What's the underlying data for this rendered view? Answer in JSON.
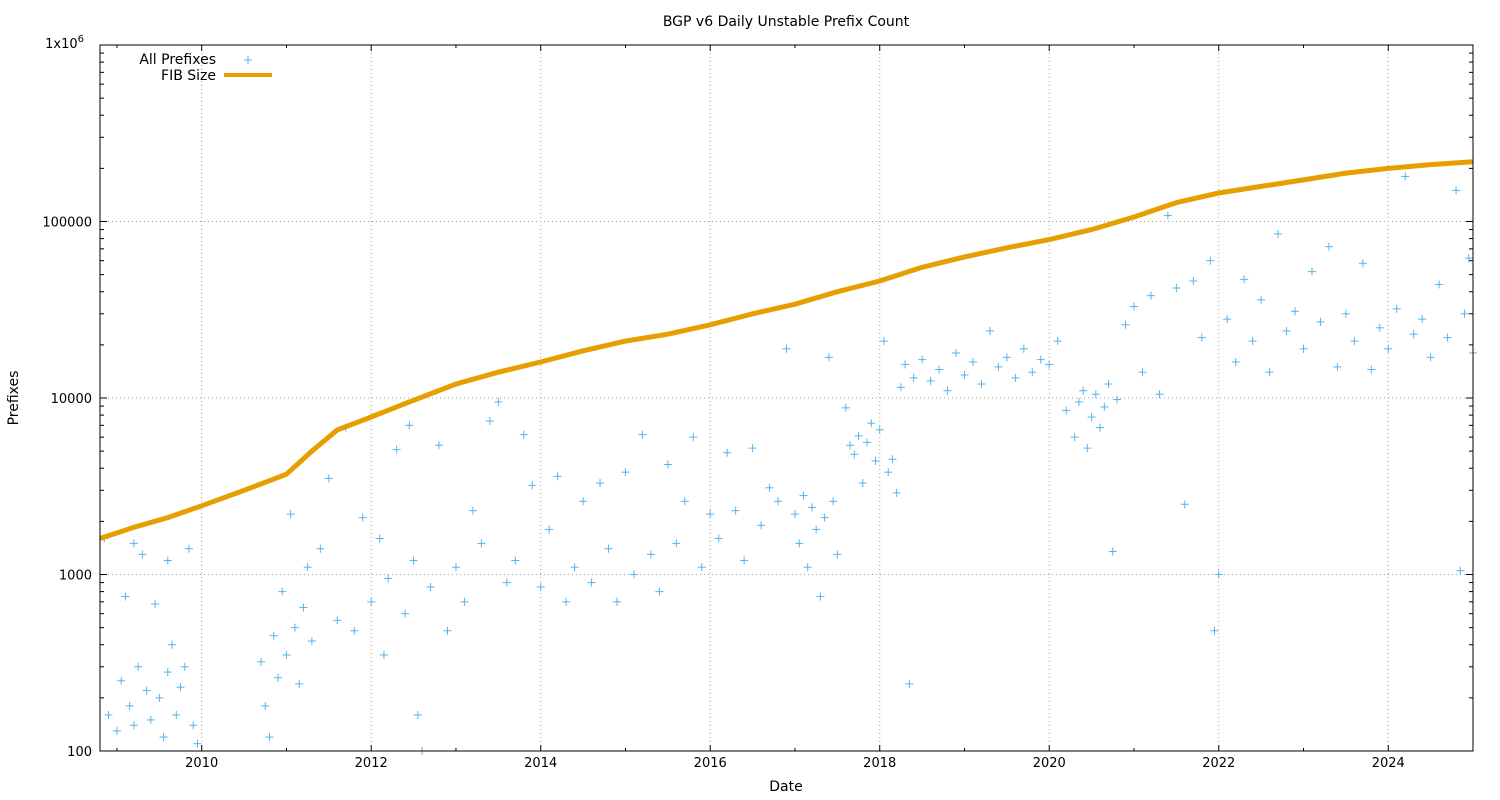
{
  "chart_data": {
    "type": "scatter",
    "title": "BGP v6 Daily Unstable Prefix Count",
    "xlabel": "Date",
    "ylabel": "Prefixes",
    "xlim": [
      2008.8,
      2025.0
    ],
    "ylim": [
      100,
      1000000
    ],
    "y_scale": "log",
    "grid": true,
    "legend_position": "top-left",
    "x_ticks": [
      2010,
      2012,
      2014,
      2016,
      2018,
      2020,
      2022,
      2024
    ],
    "y_ticks": [
      {
        "value": 100,
        "label": "100"
      },
      {
        "value": 1000,
        "label": "1000"
      },
      {
        "value": 10000,
        "label": "10000"
      },
      {
        "value": 100000,
        "label": "100000"
      },
      {
        "value": 1000000,
        "label": "1x10",
        "sup": "6"
      }
    ],
    "series": [
      {
        "name": "All Prefixes",
        "marker": "plus",
        "color": "#56b4e9",
        "points": [
          [
            2008.85,
            1600
          ],
          [
            2008.9,
            160
          ],
          [
            2009.0,
            130
          ],
          [
            2009.05,
            250
          ],
          [
            2009.1,
            750
          ],
          [
            2009.15,
            180
          ],
          [
            2009.2,
            140
          ],
          [
            2009.25,
            300
          ],
          [
            2009.3,
            1300
          ],
          [
            2009.35,
            220
          ],
          [
            2009.4,
            150
          ],
          [
            2009.45,
            680
          ],
          [
            2009.5,
            200
          ],
          [
            2009.55,
            120
          ],
          [
            2009.6,
            280
          ],
          [
            2009.65,
            400
          ],
          [
            2009.7,
            160
          ],
          [
            2009.75,
            230
          ],
          [
            2009.8,
            300
          ],
          [
            2009.85,
            1400
          ],
          [
            2009.9,
            140
          ],
          [
            2009.95,
            110
          ],
          [
            2009.6,
            1200
          ],
          [
            2009.2,
            1500
          ],
          [
            2010.7,
            320
          ],
          [
            2010.75,
            180
          ],
          [
            2010.8,
            120
          ],
          [
            2010.85,
            450
          ],
          [
            2010.9,
            260
          ],
          [
            2010.95,
            800
          ],
          [
            2011.0,
            350
          ],
          [
            2011.05,
            2200
          ],
          [
            2011.1,
            500
          ],
          [
            2011.15,
            240
          ],
          [
            2011.2,
            650
          ],
          [
            2011.25,
            1100
          ],
          [
            2011.3,
            420
          ],
          [
            2011.4,
            1400
          ],
          [
            2011.5,
            3500
          ],
          [
            2011.6,
            550
          ],
          [
            2011.7,
            6800
          ],
          [
            2011.8,
            480
          ],
          [
            2011.9,
            2100
          ],
          [
            2012.0,
            700
          ],
          [
            2012.1,
            1600
          ],
          [
            2012.15,
            350
          ],
          [
            2012.2,
            950
          ],
          [
            2012.3,
            5100
          ],
          [
            2012.4,
            600
          ],
          [
            2012.45,
            7000
          ],
          [
            2012.5,
            1200
          ],
          [
            2012.55,
            160
          ],
          [
            2012.6,
            100
          ],
          [
            2012.7,
            850
          ],
          [
            2012.8,
            5400
          ],
          [
            2012.9,
            480
          ],
          [
            2013.0,
            1100
          ],
          [
            2013.1,
            700
          ],
          [
            2013.2,
            2300
          ],
          [
            2013.3,
            1500
          ],
          [
            2013.4,
            7400
          ],
          [
            2013.5,
            9500
          ],
          [
            2013.6,
            900
          ],
          [
            2013.7,
            1200
          ],
          [
            2013.8,
            6200
          ],
          [
            2013.9,
            3200
          ],
          [
            2014.0,
            850
          ],
          [
            2014.1,
            1800
          ],
          [
            2014.2,
            3600
          ],
          [
            2014.3,
            700
          ],
          [
            2014.4,
            1100
          ],
          [
            2014.5,
            2600
          ],
          [
            2014.6,
            900
          ],
          [
            2014.7,
            3300
          ],
          [
            2014.8,
            1400
          ],
          [
            2014.9,
            700
          ],
          [
            2015.0,
            3800
          ],
          [
            2015.1,
            1000
          ],
          [
            2015.2,
            6200
          ],
          [
            2015.3,
            1300
          ],
          [
            2015.4,
            800
          ],
          [
            2015.5,
            4200
          ],
          [
            2015.6,
            1500
          ],
          [
            2015.7,
            2600
          ],
          [
            2015.8,
            6000
          ],
          [
            2015.9,
            1100
          ],
          [
            2016.0,
            2200
          ],
          [
            2016.1,
            1600
          ],
          [
            2016.2,
            4900
          ],
          [
            2016.3,
            2300
          ],
          [
            2016.4,
            1200
          ],
          [
            2016.5,
            5200
          ],
          [
            2016.6,
            1900
          ],
          [
            2016.7,
            3100
          ],
          [
            2016.8,
            2600
          ],
          [
            2016.9,
            19000
          ],
          [
            2017.0,
            2200
          ],
          [
            2017.05,
            1500
          ],
          [
            2017.1,
            2800
          ],
          [
            2017.15,
            1100
          ],
          [
            2017.2,
            2400
          ],
          [
            2017.25,
            1800
          ],
          [
            2017.3,
            750
          ],
          [
            2017.35,
            2100
          ],
          [
            2017.4,
            17000
          ],
          [
            2017.45,
            2600
          ],
          [
            2017.5,
            1300
          ],
          [
            2017.6,
            8800
          ],
          [
            2017.65,
            5400
          ],
          [
            2017.7,
            4800
          ],
          [
            2017.75,
            6100
          ],
          [
            2017.8,
            3300
          ],
          [
            2017.85,
            5600
          ],
          [
            2017.9,
            7200
          ],
          [
            2017.95,
            4400
          ],
          [
            2018.0,
            6600
          ],
          [
            2018.05,
            21000
          ],
          [
            2018.1,
            3800
          ],
          [
            2018.15,
            4500
          ],
          [
            2018.2,
            2900
          ],
          [
            2018.25,
            11500
          ],
          [
            2018.3,
            15500
          ],
          [
            2018.35,
            240
          ],
          [
            2018.4,
            13000
          ],
          [
            2018.5,
            16500
          ],
          [
            2018.6,
            12500
          ],
          [
            2018.7,
            14500
          ],
          [
            2018.8,
            11000
          ],
          [
            2018.9,
            18000
          ],
          [
            2019.0,
            13500
          ],
          [
            2019.1,
            16000
          ],
          [
            2019.2,
            12000
          ],
          [
            2019.3,
            24000
          ],
          [
            2019.4,
            15000
          ],
          [
            2019.5,
            17000
          ],
          [
            2019.6,
            13000
          ],
          [
            2019.7,
            19000
          ],
          [
            2019.8,
            14000
          ],
          [
            2019.9,
            16500
          ],
          [
            2020.0,
            15500
          ],
          [
            2020.1,
            21000
          ],
          [
            2020.2,
            8500
          ],
          [
            2020.3,
            6000
          ],
          [
            2020.35,
            9500
          ],
          [
            2020.4,
            11000
          ],
          [
            2020.45,
            5200
          ],
          [
            2020.5,
            7800
          ],
          [
            2020.55,
            10500
          ],
          [
            2020.6,
            6800
          ],
          [
            2020.65,
            8900
          ],
          [
            2020.7,
            12000
          ],
          [
            2020.75,
            1350
          ],
          [
            2020.8,
            9800
          ],
          [
            2020.9,
            26000
          ],
          [
            2021.0,
            33000
          ],
          [
            2021.1,
            14000
          ],
          [
            2021.2,
            38000
          ],
          [
            2021.3,
            10500
          ],
          [
            2021.4,
            108000
          ],
          [
            2021.5,
            42000
          ],
          [
            2021.6,
            2500
          ],
          [
            2021.7,
            46000
          ],
          [
            2021.8,
            22000
          ],
          [
            2021.9,
            60000
          ],
          [
            2021.95,
            480
          ],
          [
            2022.0,
            1000
          ],
          [
            2022.1,
            28000
          ],
          [
            2022.2,
            16000
          ],
          [
            2022.3,
            47000
          ],
          [
            2022.4,
            21000
          ],
          [
            2022.5,
            36000
          ],
          [
            2022.6,
            14000
          ],
          [
            2022.7,
            85000
          ],
          [
            2022.8,
            24000
          ],
          [
            2022.9,
            31000
          ],
          [
            2023.0,
            19000
          ],
          [
            2023.1,
            52000
          ],
          [
            2023.2,
            27000
          ],
          [
            2023.3,
            72000
          ],
          [
            2023.4,
            15000
          ],
          [
            2023.5,
            30000
          ],
          [
            2023.6,
            21000
          ],
          [
            2023.7,
            58000
          ],
          [
            2023.8,
            14500
          ],
          [
            2023.9,
            25000
          ],
          [
            2024.0,
            19000
          ],
          [
            2024.1,
            32000
          ],
          [
            2024.2,
            180000
          ],
          [
            2024.3,
            23000
          ],
          [
            2024.4,
            28000
          ],
          [
            2024.5,
            17000
          ],
          [
            2024.6,
            44000
          ],
          [
            2024.7,
            22000
          ],
          [
            2024.8,
            150000
          ],
          [
            2024.85,
            1050
          ],
          [
            2024.9,
            30000
          ],
          [
            2024.95,
            62000
          ],
          [
            2025.0,
            18000
          ]
        ]
      },
      {
        "name": "FIB Size",
        "marker": "line",
        "color": "#e69f00",
        "points": [
          [
            2008.8,
            1600
          ],
          [
            2009.2,
            1850
          ],
          [
            2009.6,
            2100
          ],
          [
            2010.0,
            2450
          ],
          [
            2010.5,
            3000
          ],
          [
            2011.0,
            3700
          ],
          [
            2011.3,
            5000
          ],
          [
            2011.6,
            6600
          ],
          [
            2012.0,
            7800
          ],
          [
            2012.4,
            9300
          ],
          [
            2013.0,
            12000
          ],
          [
            2013.5,
            14000
          ],
          [
            2014.0,
            16000
          ],
          [
            2014.5,
            18500
          ],
          [
            2015.0,
            21000
          ],
          [
            2015.5,
            23000
          ],
          [
            2016.0,
            26000
          ],
          [
            2016.5,
            30000
          ],
          [
            2017.0,
            34000
          ],
          [
            2017.5,
            40000
          ],
          [
            2018.0,
            46000
          ],
          [
            2018.5,
            55000
          ],
          [
            2019.0,
            63000
          ],
          [
            2019.5,
            71000
          ],
          [
            2020.0,
            79000
          ],
          [
            2020.5,
            90000
          ],
          [
            2021.0,
            106000
          ],
          [
            2021.5,
            128000
          ],
          [
            2022.0,
            145000
          ],
          [
            2022.5,
            158000
          ],
          [
            2023.0,
            172000
          ],
          [
            2023.5,
            188000
          ],
          [
            2024.0,
            200000
          ],
          [
            2024.5,
            210000
          ],
          [
            2025.0,
            218000
          ]
        ]
      }
    ]
  }
}
